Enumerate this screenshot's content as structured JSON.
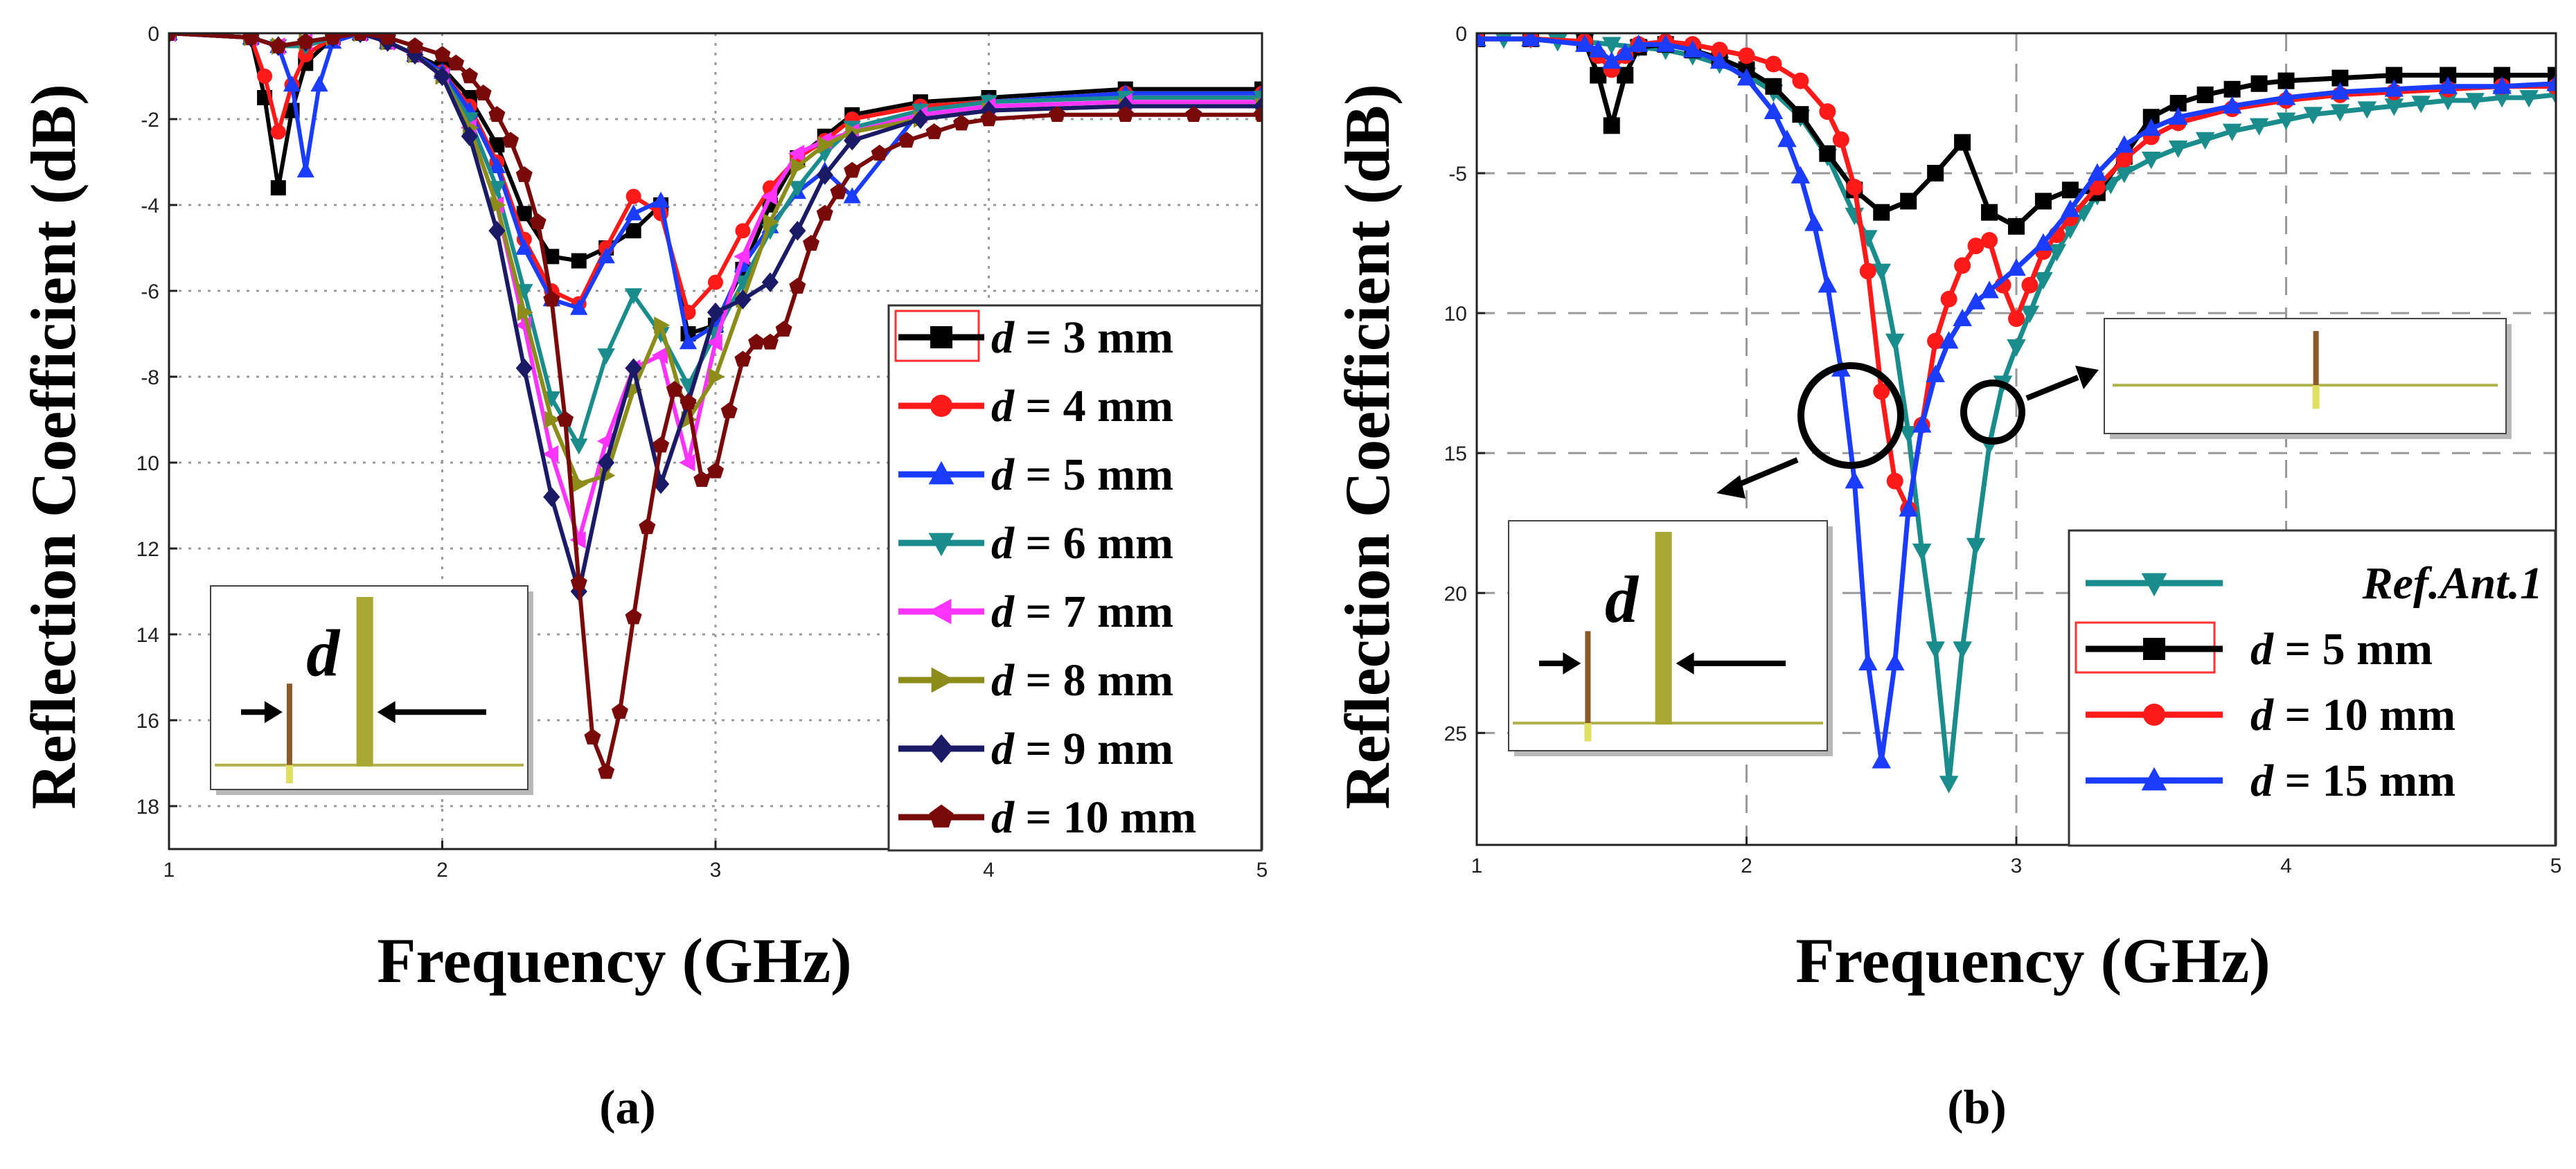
{
  "chart_data": [
    {
      "panel_label": "(a)",
      "type": "line",
      "title": "",
      "xlabel": "Frequency (GHz)",
      "ylabel": "Reflection Coefficient (dB)",
      "xlim": [
        1,
        5
      ],
      "ylim": [
        -19,
        0
      ],
      "x_ticks": [
        1,
        2,
        3,
        4,
        5
      ],
      "x_tick_labels": [
        "1",
        "2",
        "3",
        "4",
        "5"
      ],
      "y_ticks": [
        0,
        -2,
        -4,
        -6,
        -8,
        -10,
        -12,
        -14,
        -16,
        -18
      ],
      "y_tick_labels": [
        "0",
        "-2",
        "-4",
        "-6",
        "-8",
        "10",
        "12",
        "14",
        "16",
        "18"
      ],
      "grid": "dotted",
      "legend_position": "right",
      "legend_prefix": "d",
      "colors": [
        "#000000",
        "#ff1a1a",
        "#1a3cff",
        "#1a8c8c",
        "#ff33ff",
        "#8c8c1a",
        "#1a1a66",
        "#7a0a0a"
      ],
      "markers": [
        "square",
        "circle",
        "triangle-up",
        "triangle-down",
        "triangle-left",
        "triangle-right",
        "diamond",
        "pentagon"
      ],
      "inset": {
        "label": "d",
        "position": "bottom-left"
      },
      "series": [
        {
          "name": "=   3 mm",
          "x": [
            1,
            1.3,
            1.35,
            1.4,
            1.45,
            1.5,
            1.6,
            1.7,
            1.8,
            1.9,
            2,
            2.1,
            2.2,
            2.3,
            2.4,
            2.5,
            2.6,
            2.7,
            2.8,
            2.9,
            3,
            3.1,
            3.2,
            3.3,
            3.4,
            3.5,
            3.75,
            4,
            4.5,
            5
          ],
          "y": [
            0,
            -0.1,
            -1.5,
            -3.6,
            -1.8,
            -0.7,
            -0.1,
            0,
            -0.2,
            -0.5,
            -0.8,
            -1.5,
            -2.6,
            -4.2,
            -5.2,
            -5.3,
            -5.0,
            -4.6,
            -4.0,
            -7.0,
            -6.8,
            -5.5,
            -4.0,
            -2.9,
            -2.4,
            -1.9,
            -1.6,
            -1.5,
            -1.3,
            -1.3
          ]
        },
        {
          "name": "=   4 mm",
          "x": [
            1,
            1.3,
            1.35,
            1.4,
            1.45,
            1.5,
            1.6,
            1.7,
            1.8,
            1.9,
            2,
            2.1,
            2.2,
            2.3,
            2.4,
            2.5,
            2.6,
            2.7,
            2.8,
            2.9,
            3,
            3.1,
            3.2,
            3.3,
            3.4,
            3.5,
            3.75,
            4,
            4.5,
            5
          ],
          "y": [
            0,
            -0.1,
            -1.0,
            -2.3,
            -1.2,
            -0.5,
            -0.1,
            0,
            -0.2,
            -0.5,
            -0.9,
            -1.7,
            -3.0,
            -4.8,
            -6.0,
            -6.3,
            -5.0,
            -3.8,
            -4.2,
            -6.5,
            -5.8,
            -4.6,
            -3.6,
            -2.9,
            -2.5,
            -2.0,
            -1.7,
            -1.6,
            -1.4,
            -1.4
          ]
        },
        {
          "name": "=   5 mm",
          "x": [
            1,
            1.3,
            1.4,
            1.45,
            1.5,
            1.55,
            1.6,
            1.7,
            1.8,
            1.9,
            2,
            2.1,
            2.2,
            2.3,
            2.4,
            2.5,
            2.6,
            2.7,
            2.8,
            2.9,
            3,
            3.1,
            3.2,
            3.3,
            3.4,
            3.5,
            3.75,
            4,
            4.5,
            5
          ],
          "y": [
            0,
            -0.1,
            -0.3,
            -1.2,
            -3.2,
            -1.2,
            -0.2,
            0,
            -0.2,
            -0.5,
            -0.9,
            -1.8,
            -3.1,
            -5.0,
            -6.2,
            -6.4,
            -5.2,
            -4.2,
            -3.9,
            -7.2,
            -6.8,
            -5.4,
            -4.5,
            -3.7,
            -3.2,
            -3.8,
            -1.8,
            -1.6,
            -1.4,
            -1.4
          ]
        },
        {
          "name": "=   6 mm",
          "x": [
            1,
            1.3,
            1.4,
            1.5,
            1.6,
            1.7,
            1.8,
            1.9,
            2,
            2.1,
            2.2,
            2.3,
            2.4,
            2.5,
            2.6,
            2.7,
            2.8,
            2.9,
            3,
            3.1,
            3.2,
            3.3,
            3.4,
            3.5,
            3.75,
            4,
            4.5,
            5
          ],
          "y": [
            0,
            -0.1,
            -0.3,
            -0.3,
            -0.1,
            0,
            -0.2,
            -0.5,
            -1.0,
            -2.0,
            -3.6,
            -6.0,
            -8.5,
            -9.6,
            -7.5,
            -6.1,
            -7.0,
            -8.2,
            -7.0,
            -5.8,
            -4.6,
            -3.6,
            -2.8,
            -2.2,
            -1.8,
            -1.6,
            -1.5,
            -1.5
          ]
        },
        {
          "name": "=   7 mm",
          "x": [
            1,
            1.3,
            1.4,
            1.5,
            1.6,
            1.7,
            1.8,
            1.9,
            2,
            2.1,
            2.2,
            2.3,
            2.4,
            2.5,
            2.6,
            2.7,
            2.8,
            2.9,
            3,
            3.1,
            3.2,
            3.3,
            3.4,
            3.5,
            3.75,
            4,
            4.5,
            5
          ],
          "y": [
            0,
            -0.1,
            -0.3,
            -0.2,
            -0.1,
            0,
            -0.2,
            -0.5,
            -1.0,
            -2.2,
            -4.0,
            -6.8,
            -9.8,
            -11.8,
            -9.5,
            -7.8,
            -7.5,
            -10.0,
            -7.2,
            -5.2,
            -3.8,
            -2.8,
            -2.5,
            -2.3,
            -1.9,
            -1.7,
            -1.6,
            -1.6
          ]
        },
        {
          "name": "=   8 mm",
          "x": [
            1,
            1.3,
            1.4,
            1.5,
            1.6,
            1.7,
            1.8,
            1.9,
            2,
            2.1,
            2.2,
            2.3,
            2.4,
            2.5,
            2.6,
            2.7,
            2.8,
            2.9,
            3,
            3.1,
            3.2,
            3.3,
            3.4,
            3.5,
            3.75,
            4,
            4.5,
            5
          ],
          "y": [
            0,
            -0.1,
            -0.3,
            -0.2,
            -0.1,
            0,
            -0.2,
            -0.5,
            -1.0,
            -2.2,
            -4.0,
            -6.5,
            -9.0,
            -10.5,
            -10.3,
            -8.3,
            -6.8,
            -9.0,
            -8.0,
            -6.2,
            -4.4,
            -3.1,
            -2.6,
            -2.3,
            -2.0,
            -1.8,
            -1.7,
            -1.7
          ]
        },
        {
          "name": "=   9 mm",
          "x": [
            1,
            1.3,
            1.4,
            1.5,
            1.6,
            1.7,
            1.8,
            1.9,
            2,
            2.1,
            2.2,
            2.3,
            2.4,
            2.5,
            2.6,
            2.7,
            2.8,
            2.9,
            3,
            3.1,
            3.2,
            3.3,
            3.4,
            3.5,
            3.75,
            4,
            4.5,
            5
          ],
          "y": [
            0,
            -0.1,
            -0.3,
            -0.2,
            -0.1,
            0,
            -0.2,
            -0.5,
            -1.0,
            -2.4,
            -4.6,
            -7.8,
            -10.8,
            -13.0,
            -10.0,
            -7.8,
            -10.5,
            -8.6,
            -6.5,
            -6.2,
            -5.8,
            -4.6,
            -3.3,
            -2.5,
            -2.0,
            -1.8,
            -1.7,
            -1.7
          ]
        },
        {
          "name": "= 10 mm",
          "x": [
            1,
            1.3,
            1.4,
            1.5,
            1.6,
            1.7,
            1.8,
            1.9,
            2,
            2.05,
            2.1,
            2.15,
            2.2,
            2.25,
            2.3,
            2.35,
            2.4,
            2.45,
            2.5,
            2.55,
            2.6,
            2.65,
            2.7,
            2.75,
            2.8,
            2.85,
            2.9,
            2.95,
            3,
            3.05,
            3.1,
            3.15,
            3.2,
            3.25,
            3.3,
            3.35,
            3.4,
            3.45,
            3.5,
            3.6,
            3.7,
            3.8,
            3.9,
            4,
            4.25,
            4.5,
            4.75,
            5
          ],
          "y": [
            0,
            -0.1,
            -0.3,
            -0.2,
            -0.1,
            0,
            -0.1,
            -0.3,
            -0.5,
            -0.7,
            -1.0,
            -1.4,
            -1.9,
            -2.5,
            -3.3,
            -4.4,
            -6.2,
            -9.0,
            -12.8,
            -16.4,
            -17.2,
            -15.8,
            -13.6,
            -11.5,
            -9.6,
            -8.3,
            -8.6,
            -10.4,
            -10.2,
            -8.8,
            -7.6,
            -7.2,
            -7.2,
            -6.9,
            -5.9,
            -4.9,
            -4.2,
            -3.7,
            -3.2,
            -2.8,
            -2.5,
            -2.3,
            -2.1,
            -2.0,
            -1.9,
            -1.9,
            -1.9,
            -1.9
          ]
        }
      ]
    },
    {
      "panel_label": "(b)",
      "type": "line",
      "title": "",
      "xlabel": "Frequency (GHz)",
      "ylabel": "Reflection Coefficient (dB)",
      "xlim": [
        1,
        5
      ],
      "ylim": [
        -29,
        0
      ],
      "x_ticks": [
        1,
        2,
        3,
        4,
        5
      ],
      "x_tick_labels": [
        "1",
        "2",
        "3",
        "4",
        "5"
      ],
      "y_ticks": [
        0,
        -5,
        -10,
        -15,
        -20,
        -25
      ],
      "y_tick_labels": [
        "0",
        "-5",
        "10",
        "15",
        "20",
        "25"
      ],
      "grid": "dashed",
      "legend_position": "bottom-right",
      "legend_prefix": "d",
      "colors": [
        "#1a8c8c",
        "#000000",
        "#ff1a1a",
        "#1a3cff"
      ],
      "markers": [
        "triangle-down",
        "square",
        "circle",
        "triangle-up"
      ],
      "inset_left": {
        "label": "d",
        "position": "bottom-left"
      },
      "inset_right": {
        "position": "center-right"
      },
      "series": [
        {
          "name": "Ref.Ant.1",
          "x": [
            1,
            1.1,
            1.2,
            1.3,
            1.4,
            1.5,
            1.6,
            1.7,
            1.8,
            1.9,
            2,
            2.1,
            2.2,
            2.3,
            2.4,
            2.45,
            2.5,
            2.55,
            2.6,
            2.65,
            2.7,
            2.75,
            2.8,
            2.85,
            2.9,
            2.95,
            3,
            3.05,
            3.1,
            3.15,
            3.2,
            3.25,
            3.3,
            3.35,
            3.4,
            3.5,
            3.6,
            3.7,
            3.8,
            3.9,
            4,
            4.1,
            4.2,
            4.3,
            4.4,
            4.5,
            4.6,
            4.7,
            4.8,
            4.9,
            5
          ],
          "y": [
            -0.2,
            -0.2,
            -0.2,
            -0.3,
            -0.3,
            -0.4,
            -0.5,
            -0.6,
            -0.8,
            -1.1,
            -1.5,
            -2.1,
            -3.0,
            -4.4,
            -6.5,
            -7.3,
            -8.5,
            -11.0,
            -14.3,
            -18.5,
            -22.0,
            -26.8,
            -22.0,
            -18.3,
            -14.7,
            -12.5,
            -11.2,
            -10.0,
            -8.8,
            -7.8,
            -7.0,
            -6.4,
            -5.8,
            -5.4,
            -5.0,
            -4.5,
            -4.1,
            -3.8,
            -3.5,
            -3.3,
            -3.1,
            -2.9,
            -2.8,
            -2.7,
            -2.6,
            -2.5,
            -2.4,
            -2.4,
            -2.3,
            -2.3,
            -2.2
          ]
        },
        {
          "name": "=   5 mm",
          "x": [
            1,
            1.2,
            1.4,
            1.45,
            1.5,
            1.55,
            1.6,
            1.7,
            1.8,
            1.9,
            2,
            2.1,
            2.2,
            2.3,
            2.4,
            2.5,
            2.6,
            2.7,
            2.8,
            2.9,
            3,
            3.1,
            3.2,
            3.3,
            3.4,
            3.5,
            3.6,
            3.7,
            3.8,
            3.9,
            4,
            4.2,
            4.4,
            4.6,
            4.8,
            5
          ],
          "y": [
            -0.2,
            -0.2,
            -0.3,
            -1.5,
            -3.3,
            -1.5,
            -0.5,
            -0.4,
            -0.6,
            -0.9,
            -1.3,
            -1.9,
            -2.9,
            -4.3,
            -5.6,
            -6.4,
            -6.0,
            -5.0,
            -3.9,
            -6.4,
            -6.9,
            -6.0,
            -5.6,
            -5.7,
            -4.4,
            -3.0,
            -2.5,
            -2.2,
            -2.0,
            -1.8,
            -1.7,
            -1.6,
            -1.5,
            -1.5,
            -1.5,
            -1.5
          ]
        },
        {
          "name": "= 10 mm",
          "x": [
            1,
            1.2,
            1.4,
            1.45,
            1.5,
            1.55,
            1.6,
            1.7,
            1.8,
            1.9,
            2,
            2.1,
            2.2,
            2.3,
            2.35,
            2.4,
            2.45,
            2.5,
            2.55,
            2.6,
            2.65,
            2.7,
            2.75,
            2.8,
            2.85,
            2.9,
            2.95,
            3,
            3.05,
            3.1,
            3.15,
            3.2,
            3.3,
            3.4,
            3.5,
            3.6,
            3.8,
            4,
            4.2,
            4.4,
            4.6,
            4.8,
            5
          ],
          "y": [
            -0.2,
            -0.2,
            -0.3,
            -0.8,
            -1.3,
            -0.8,
            -0.4,
            -0.3,
            -0.4,
            -0.6,
            -0.8,
            -1.1,
            -1.7,
            -2.8,
            -3.8,
            -5.5,
            -8.5,
            -12.8,
            -16.0,
            -17.0,
            -14.0,
            -11.0,
            -9.5,
            -8.3,
            -7.6,
            -7.4,
            -9.0,
            -10.2,
            -9.0,
            -7.8,
            -7.2,
            -6.6,
            -5.5,
            -4.5,
            -3.7,
            -3.2,
            -2.7,
            -2.4,
            -2.2,
            -2.1,
            -2.0,
            -1.9,
            -1.9
          ]
        },
        {
          "name": "= 15 mm",
          "x": [
            1,
            1.2,
            1.4,
            1.45,
            1.5,
            1.55,
            1.6,
            1.7,
            1.8,
            1.9,
            2,
            2.1,
            2.15,
            2.2,
            2.25,
            2.3,
            2.35,
            2.4,
            2.45,
            2.5,
            2.55,
            2.6,
            2.65,
            2.7,
            2.75,
            2.8,
            2.85,
            2.9,
            3,
            3.1,
            3.2,
            3.3,
            3.4,
            3.5,
            3.6,
            3.8,
            4,
            4.2,
            4.4,
            4.6,
            4.8,
            5
          ],
          "y": [
            -0.2,
            -0.2,
            -0.4,
            -0.6,
            -1.0,
            -0.7,
            -0.4,
            -0.4,
            -0.6,
            -1.0,
            -1.6,
            -2.8,
            -3.8,
            -5.1,
            -6.8,
            -9.0,
            -12.0,
            -16.0,
            -22.5,
            -26.0,
            -22.5,
            -17.0,
            -14.0,
            -12.2,
            -11.0,
            -10.2,
            -9.6,
            -9.2,
            -8.4,
            -7.5,
            -6.3,
            -5.0,
            -4.0,
            -3.4,
            -3.0,
            -2.6,
            -2.3,
            -2.1,
            -2.0,
            -1.9,
            -1.9,
            -1.8
          ]
        }
      ]
    }
  ]
}
